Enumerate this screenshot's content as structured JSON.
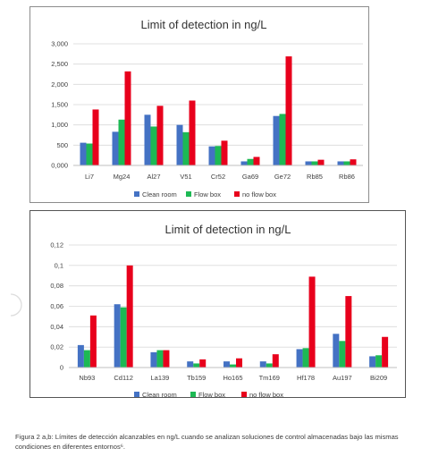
{
  "caption": "Figura 2 a,b: Límites de detección alcanzables en ng/L cuando se analizan soluciones de control almacenadas bajo las mismas condiciones en diferentes entornos⁶.",
  "side_icon": "scroll-indicator-arc",
  "colors": {
    "clean": "#4472C4",
    "flow": "#1DB954",
    "noflow": "#E8001C",
    "grid": "#d9d9d9",
    "axis_text": "#404040",
    "title": "#333333"
  },
  "chart_data": [
    {
      "type": "bar",
      "title": "Limit of detection in ng/L",
      "categories": [
        "Li7",
        "Mg24",
        "Al27",
        "V51",
        "Cr52",
        "Ga69",
        "Ge72",
        "Rb85",
        "Rb86"
      ],
      "series": [
        {
          "name": "Clean room",
          "values": [
            560,
            830,
            1250,
            1000,
            470,
            100,
            1220,
            100,
            100
          ]
        },
        {
          "name": "Flow box",
          "values": [
            540,
            1130,
            960,
            820,
            480,
            160,
            1270,
            100,
            100
          ]
        },
        {
          "name": "no flow box",
          "values": [
            1380,
            2320,
            1470,
            1600,
            610,
            210,
            2690,
            140,
            150
          ]
        }
      ],
      "ylim": [
        0,
        3000
      ],
      "yticks": [
        0,
        500,
        1000,
        1500,
        2000,
        2500,
        3000
      ],
      "ytick_labels": [
        "0,000",
        "500",
        "1,000",
        "1,500",
        "2,000",
        "2,500",
        "3,000"
      ],
      "grid": true,
      "legend_position": "bottom"
    },
    {
      "type": "bar",
      "title": "Limit of detection in ng/L",
      "categories": [
        "Nb93",
        "Cd112",
        "La139",
        "Tb159",
        "Ho165",
        "Tm169",
        "Hf178",
        "Au197",
        "Bi209"
      ],
      "series": [
        {
          "name": "Clean room",
          "values": [
            0.022,
            0.062,
            0.015,
            0.006,
            0.006,
            0.006,
            0.018,
            0.033,
            0.011
          ]
        },
        {
          "name": "Flow box",
          "values": [
            0.017,
            0.059,
            0.017,
            0.004,
            0.003,
            0.004,
            0.019,
            0.026,
            0.012
          ]
        },
        {
          "name": "no flow box",
          "values": [
            0.051,
            0.1,
            0.017,
            0.008,
            0.009,
            0.013,
            0.089,
            0.07,
            0.03
          ]
        }
      ],
      "ylim": [
        0,
        0.12
      ],
      "yticks": [
        0,
        0.02,
        0.04,
        0.06,
        0.08,
        0.1,
        0.12
      ],
      "ytick_labels": [
        "0",
        "0,02",
        "0,04",
        "0,06",
        "0,08",
        "0,1",
        "0,12"
      ],
      "grid": true,
      "legend_position": "bottom"
    }
  ]
}
